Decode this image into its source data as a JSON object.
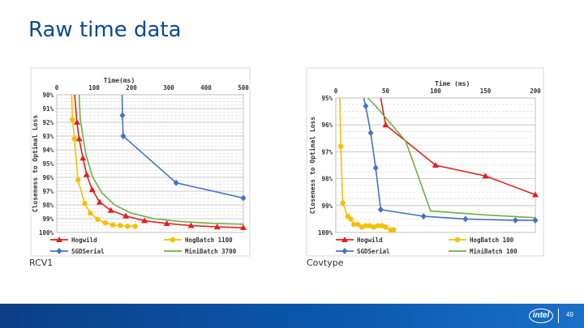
{
  "slide": {
    "title": "Raw time data",
    "page_number": "49",
    "logo_text": "intel",
    "accent_color": "#0a4a8f"
  },
  "chart_data": [
    {
      "type": "line",
      "caption": "RCV1",
      "x_top_label": "Time(ms)",
      "ylabel": "Closeness to Optimal Loss",
      "xlim": [
        0,
        500
      ],
      "ylim": [
        90,
        100
      ],
      "x_ticks": [
        0,
        100,
        200,
        300,
        400,
        500
      ],
      "x_tick_labels": [
        "0",
        "100",
        "200",
        "300",
        "400",
        "500"
      ],
      "y_ticks": [
        90,
        91,
        92,
        93,
        94,
        95,
        96,
        97,
        98,
        99,
        100
      ],
      "y_tick_labels": [
        "90%",
        "91%",
        "92%",
        "93%",
        "94%",
        "95%",
        "96%",
        "97%",
        "98%",
        "99%",
        "100%"
      ],
      "y_inverted": true,
      "legend": [
        {
          "name": "Hogwild",
          "color": "#e02020",
          "marker": "triangle"
        },
        {
          "name": "HogBatch 1100",
          "color": "#f5c000",
          "marker": "circle"
        },
        {
          "name": "SGDSerial",
          "color": "#4472c4",
          "marker": "diamond"
        },
        {
          "name": "MiniBatch 3700",
          "color": "#70ad47",
          "marker": "none"
        }
      ],
      "series": [
        {
          "name": "Hogwild",
          "color": "#e02020",
          "marker": "triangle",
          "x": [
            48,
            54,
            60,
            70,
            80,
            95,
            115,
            145,
            185,
            235,
            295,
            360,
            430,
            500
          ],
          "y": [
            90,
            92.0,
            93.2,
            94.6,
            95.8,
            96.9,
            97.8,
            98.4,
            98.8,
            99.15,
            99.35,
            99.5,
            99.6,
            99.65
          ]
        },
        {
          "name": "HogBatch 1100",
          "color": "#f5c000",
          "marker": "circle",
          "x": [
            40,
            42,
            47,
            57,
            75,
            90,
            110,
            130,
            150,
            170,
            190,
            210
          ],
          "y": [
            90,
            91.8,
            93.2,
            96.2,
            97.9,
            98.6,
            99.05,
            99.3,
            99.45,
            99.5,
            99.55,
            99.55
          ]
        },
        {
          "name": "SGDSerial",
          "color": "#4472c4",
          "marker": "diamond",
          "x": [
            175,
            176,
            178,
            320,
            500
          ],
          "y": [
            90,
            91.5,
            93.0,
            96.4,
            97.5
          ]
        },
        {
          "name": "MiniBatch 3700",
          "color": "#70ad47",
          "marker": "none",
          "x": [
            60,
            63,
            70,
            78,
            95,
            120,
            155,
            200,
            260,
            330,
            420,
            500
          ],
          "y": [
            90,
            91.8,
            93.0,
            94.3,
            95.9,
            97.1,
            98.0,
            98.6,
            99.0,
            99.2,
            99.35,
            99.4
          ]
        }
      ]
    },
    {
      "type": "line",
      "caption": "Covtype",
      "x_top_label": "Time (ms)",
      "ylabel": "Closeness to Optimal Loss",
      "xlim": [
        0,
        200
      ],
      "ylim": [
        95,
        100
      ],
      "x_ticks": [
        0,
        50,
        100,
        150,
        200
      ],
      "x_tick_labels": [
        "0",
        "50",
        "100",
        "150",
        "200"
      ],
      "y_ticks": [
        95,
        96,
        97,
        98,
        99,
        100
      ],
      "y_tick_labels": [
        "95%",
        "96%",
        "97%",
        "98%",
        "99%",
        "100%"
      ],
      "y_inverted": true,
      "legend": [
        {
          "name": "Hogwild",
          "color": "#e02020",
          "marker": "triangle"
        },
        {
          "name": "HogBatch 100",
          "color": "#f5c000",
          "marker": "circle"
        },
        {
          "name": "SGDSerial",
          "color": "#4472c4",
          "marker": "diamond"
        },
        {
          "name": "MiniBatch 100",
          "color": "#70ad47",
          "marker": "none"
        }
      ],
      "series": [
        {
          "name": "Hogwild",
          "color": "#e02020",
          "marker": "triangle",
          "x": [
            45,
            50,
            100,
            150,
            200
          ],
          "y": [
            95,
            96.0,
            97.5,
            97.9,
            98.6
          ]
        },
        {
          "name": "HogBatch 100",
          "color": "#f5c000",
          "marker": "circle",
          "x": [
            4,
            5,
            7,
            12,
            15,
            18,
            22,
            26,
            30,
            34,
            38,
            42,
            46,
            50,
            55,
            58
          ],
          "y": [
            95,
            96.8,
            98.9,
            99.4,
            99.5,
            99.7,
            99.7,
            99.8,
            99.75,
            99.75,
            99.8,
            99.75,
            99.75,
            99.8,
            99.9,
            99.9
          ]
        },
        {
          "name": "SGDSerial",
          "color": "#4472c4",
          "marker": "diamond",
          "x": [
            28,
            30,
            35,
            40,
            45,
            88,
            130,
            180,
            200
          ],
          "y": [
            95,
            95.3,
            96.3,
            97.6,
            99.15,
            99.4,
            99.5,
            99.55,
            99.55
          ]
        },
        {
          "name": "MiniBatch 100",
          "color": "#70ad47",
          "marker": "none",
          "x": [
            32,
            40,
            70,
            95,
            150,
            200
          ],
          "y": [
            95,
            95.3,
            96.6,
            99.2,
            99.35,
            99.45
          ]
        }
      ]
    }
  ]
}
